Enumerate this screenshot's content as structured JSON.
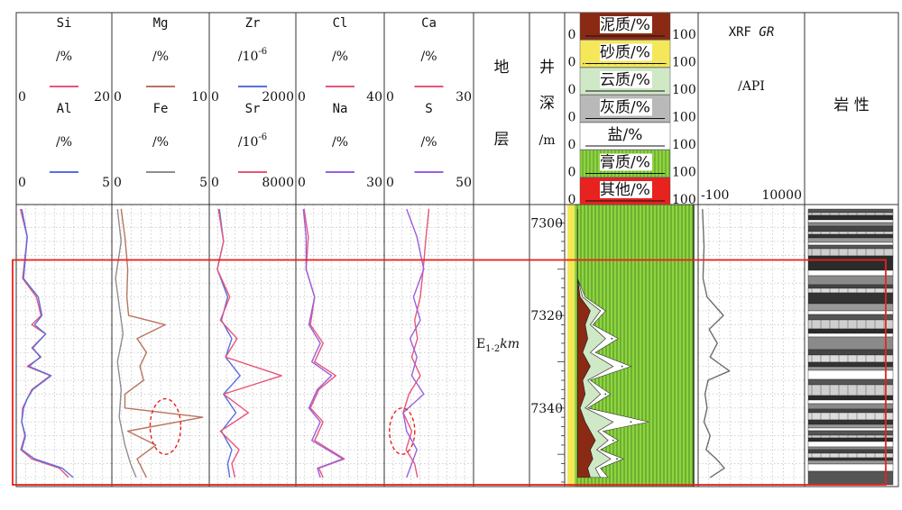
{
  "chart_data": {
    "type": "line",
    "title": "",
    "depth_axis": {
      "label_chars": [
        "井",
        "深",
        "/m"
      ],
      "range": [
        7297,
        7356
      ],
      "ticks": [
        7300,
        7320,
        7340
      ]
    },
    "formation": {
      "label_chars": [
        "地",
        "层"
      ],
      "unit_main": "E",
      "unit_sub": "1-2",
      "unit_suffix": "km"
    },
    "lithology_label": "岩 性",
    "tracks": [
      {
        "id": "si_al",
        "series": [
          {
            "name": "Si",
            "unit": "/%",
            "color": "#e8557a",
            "range": [
              0,
              20
            ],
            "depth": [
              7297,
              7303,
              7312,
              7316,
              7320,
              7322,
              7324,
              7327,
              7329,
              7331,
              7333,
              7336,
              7338,
              7340,
              7343,
              7346,
              7349,
              7351,
              7353,
              7355
            ],
            "values": [
              0.5,
              2,
              1,
              4,
              5,
              3,
              6,
              3,
              5,
              2,
              7,
              3,
              2,
              1,
              0.8,
              1.5,
              0.6,
              3,
              9,
              11
            ]
          },
          {
            "name": "Al",
            "unit": "/%",
            "color": "#5a6ee0",
            "range": [
              0,
              5
            ],
            "depth": [
              7297,
              7303,
              7312,
              7316,
              7320,
              7322,
              7324,
              7327,
              7329,
              7331,
              7333,
              7336,
              7338,
              7340,
              7343,
              7346,
              7349,
              7351,
              7353,
              7355
            ],
            "values": [
              0.2,
              0.5,
              0.3,
              1.1,
              1.3,
              0.9,
              1.5,
              0.8,
              1.2,
              0.6,
              1.8,
              0.8,
              0.5,
              0.3,
              0.2,
              0.4,
              0.2,
              0.9,
              2.4,
              3
            ]
          }
        ]
      },
      {
        "id": "mg_fe",
        "series": [
          {
            "name": "Mg",
            "unit": "/%",
            "color": "#b8745e",
            "range": [
              0,
              10
            ],
            "depth": [
              7297,
              7303,
              7310,
              7316,
              7320,
              7322,
              7325,
              7328,
              7331,
              7334,
              7337,
              7340,
              7342,
              7345,
              7348,
              7351,
              7355
            ],
            "values": [
              0.8,
              1.2,
              1.5,
              1.4,
              1.6,
              5.5,
              2.5,
              3.5,
              2.8,
              3.2,
              1.2,
              1.2,
              9.5,
              1.5,
              4.5,
              2.5,
              3.5
            ]
          },
          {
            "name": "Fe",
            "unit": "/%",
            "color": "#8f8f8f",
            "range": [
              0,
              5
            ],
            "depth": [
              7297,
              7304,
              7312,
              7318,
              7324,
              7330,
              7336,
              7342,
              7348,
              7352,
              7355
            ],
            "values": [
              0.2,
              0.4,
              0.1,
              0.3,
              0.5,
              0.2,
              0.4,
              0.3,
              0.6,
              0.9,
              1.2
            ]
          }
        ]
      },
      {
        "id": "zr_sr",
        "series": [
          {
            "name": "Zr",
            "unit_base": "/10",
            "unit_exp": "-6",
            "color": "#5a6ee0",
            "range": [
              0,
              2000
            ],
            "depth": [
              7297,
              7304,
              7310,
              7316,
              7321,
              7325,
              7329,
              7333,
              7337,
              7341,
              7345,
              7349,
              7352,
              7355
            ],
            "values": [
              200,
              300,
              150,
              400,
              250,
              500,
              350,
              700,
              300,
              600,
              250,
              500,
              400,
              450
            ]
          },
          {
            "name": "Sr",
            "unit_base": "/10",
            "unit_exp": "-6",
            "color": "#e8557a",
            "range": [
              0,
              8000
            ],
            "depth": [
              7297,
              7304,
              7310,
              7316,
              7321,
              7325,
              7329,
              7333,
              7337,
              7341,
              7345,
              7349,
              7352,
              7355
            ],
            "values": [
              700,
              1200,
              600,
              1800,
              900,
              2500,
              1400,
              6800,
              1200,
              3600,
              900,
              2700,
              2000,
              2300
            ]
          }
        ]
      },
      {
        "id": "cl_na",
        "series": [
          {
            "name": "Cl",
            "unit": "/%",
            "color": "#e8557a",
            "range": [
              0,
              40
            ],
            "depth": [
              7297,
              7303,
              7310,
              7316,
              7322,
              7326,
              7330,
              7333,
              7336,
              7340,
              7343,
              7347,
              7351,
              7353,
              7355
            ],
            "values": [
              3,
              5,
              4,
              8,
              6,
              12,
              8,
              18,
              10,
              6,
              12,
              8,
              22,
              10,
              12
            ]
          },
          {
            "name": "Na",
            "unit": "/%",
            "color": "#9b5fe0",
            "range": [
              0,
              30
            ],
            "depth": [
              7297,
              7303,
              7310,
              7316,
              7322,
              7326,
              7330,
              7333,
              7336,
              7340,
              7343,
              7347,
              7351,
              7353,
              7355
            ],
            "values": [
              2,
              3,
              3,
              6,
              4,
              8,
              5,
              12,
              7,
              4,
              8,
              5,
              16,
              7,
              8
            ]
          }
        ]
      },
      {
        "id": "ca_s",
        "series": [
          {
            "name": "Ca",
            "unit": "/%",
            "color": "#e8557a",
            "range": [
              0,
              30
            ],
            "depth": [
              7297,
              7303,
              7310,
              7316,
              7321,
              7325,
              7329,
              7333,
              7337,
              7341,
              7345,
              7349,
              7352,
              7355
            ],
            "values": [
              15,
              14,
              13,
              12,
              10,
              11,
              9,
              12,
              8,
              6,
              9,
              7,
              10,
              11
            ]
          },
          {
            "name": "S",
            "unit": "/%",
            "color": "#9b5fe0",
            "range": [
              0,
              50
            ],
            "depth": [
              7297,
              7303,
              7310,
              7316,
              7321,
              7325,
              7329,
              7333,
              7337,
              7341,
              7345,
              7349,
              7352,
              7355
            ],
            "values": [
              12,
              18,
              22,
              16,
              20,
              14,
              18,
              15,
              22,
              10,
              12,
              18,
              15,
              12
            ]
          }
        ]
      }
    ],
    "composition_track": {
      "range": [
        0,
        100
      ],
      "layers": [
        {
          "name": "泥质/%",
          "color": "#8b2a14"
        },
        {
          "name": "砂质/%",
          "color": "#f4e85a"
        },
        {
          "name": "云质/%",
          "color": "#cfe8c6"
        },
        {
          "name": "灰质/%",
          "color": "#b9b9b9"
        },
        {
          "name": "盐/%",
          "color": "#ffffff"
        },
        {
          "name": "膏质/%",
          "color": "#8fd440"
        },
        {
          "name": "其他/%",
          "color": "#e8221f"
        }
      ],
      "depth": [
        7297,
        7305,
        7312,
        7316,
        7319,
        7322,
        7325,
        7328,
        7331,
        7334,
        7337,
        7340,
        7343,
        7345,
        7347,
        7349,
        7351,
        7353,
        7355
      ],
      "mud": [
        0,
        0,
        0,
        2,
        10,
        6,
        8,
        4,
        10,
        4,
        6,
        2,
        6,
        10,
        14,
        10,
        12,
        8,
        10
      ],
      "dolo": [
        0,
        0,
        0,
        2,
        8,
        4,
        14,
        6,
        18,
        4,
        12,
        4,
        22,
        6,
        10,
        5,
        14,
        6,
        8
      ],
      "salt": [
        0,
        0,
        0,
        2,
        4,
        2,
        10,
        4,
        14,
        2,
        8,
        2,
        28,
        4,
        8,
        3,
        10,
        4,
        6
      ]
    },
    "gr_track": {
      "name": "XRF GR",
      "unit": "/API",
      "range": [
        -100,
        10000
      ],
      "color": "#6e6e6e",
      "depth": [
        7297,
        7305,
        7312,
        7316,
        7320,
        7323,
        7326,
        7329,
        7332,
        7334,
        7337,
        7340,
        7343,
        7346,
        7349,
        7351,
        7353,
        7355
      ],
      "values": [
        150,
        300,
        200,
        600,
        2200,
        800,
        1600,
        900,
        2800,
        700,
        400,
        600,
        300,
        900,
        500,
        1500,
        2300,
        900
      ]
    },
    "annotations": [
      {
        "type": "box",
        "depth_range": [
          7308,
          7355
        ],
        "color": "#e8221f"
      },
      {
        "type": "ellipse",
        "track": "mg_fe",
        "depth_range": [
          7338,
          7350
        ],
        "color": "#e8221f"
      },
      {
        "type": "ellipse",
        "track": "ca_s",
        "depth_range": [
          7340,
          7350
        ],
        "color": "#e8221f"
      }
    ]
  }
}
